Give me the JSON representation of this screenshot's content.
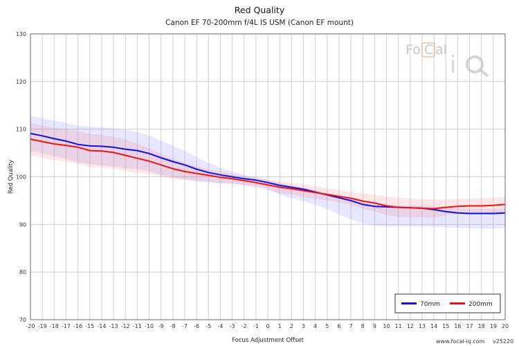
{
  "chart_data": {
    "type": "line",
    "title": "Red Quality",
    "subtitle": "Canon EF 70-200mm f/4L IS USM (Canon EF mount)",
    "xlabel": "Focus Adjustment Offset",
    "ylabel": "Red Quality",
    "xlim": [
      -20,
      20
    ],
    "ylim": [
      70,
      130
    ],
    "yticks": [
      70,
      80,
      90,
      100,
      110,
      120,
      130
    ],
    "x": [
      -20,
      -19,
      -18,
      -17,
      -16,
      -15,
      -14,
      -13,
      -12,
      -11,
      -10,
      -9,
      -8,
      -7,
      -6,
      -5,
      -4,
      -3,
      -2,
      -1,
      0,
      1,
      2,
      3,
      4,
      5,
      6,
      7,
      8,
      9,
      10,
      11,
      12,
      13,
      14,
      15,
      16,
      17,
      18,
      19,
      20
    ],
    "grid": true,
    "legend_position": "bottom-right",
    "series": [
      {
        "name": "70mm",
        "color": "#1010dd",
        "values": [
          109.1,
          108.6,
          108.0,
          107.5,
          106.8,
          106.5,
          106.4,
          106.2,
          105.8,
          105.5,
          104.9,
          104.0,
          103.2,
          102.5,
          101.6,
          100.9,
          100.4,
          100.0,
          99.6,
          99.3,
          98.8,
          98.2,
          97.8,
          97.4,
          96.8,
          96.2,
          95.6,
          95.0,
          94.2,
          93.8,
          93.7,
          93.6,
          93.5,
          93.4,
          93.1,
          92.7,
          92.4,
          92.3,
          92.3,
          92.3,
          92.4
        ],
        "band_upper": [
          112.8,
          112.3,
          111.8,
          111.3,
          110.7,
          110.5,
          110.4,
          110.2,
          109.8,
          109.4,
          108.6,
          107.6,
          106.5,
          105.4,
          104.1,
          102.9,
          101.9,
          101.1,
          100.4,
          99.9,
          99.3,
          98.7,
          98.2,
          97.7,
          97.2,
          96.6,
          96.0,
          95.4,
          94.6,
          94.2,
          94.1,
          94.0,
          94.0,
          94.0,
          93.8,
          93.6,
          93.4,
          93.3,
          93.3,
          93.3,
          93.4
        ],
        "band_lower": [
          105.4,
          104.9,
          104.3,
          103.8,
          103.0,
          102.6,
          102.4,
          102.2,
          101.8,
          101.6,
          101.2,
          100.4,
          99.9,
          99.5,
          99.0,
          98.8,
          98.6,
          98.5,
          98.3,
          98.1,
          97.5,
          96.3,
          95.5,
          94.9,
          94.1,
          93.2,
          92.1,
          91.1,
          90.2,
          89.8,
          89.6,
          89.6,
          89.6,
          89.6,
          89.5,
          89.4,
          89.3,
          89.2,
          89.1,
          89.1,
          89.2
        ]
      },
      {
        "name": "200mm",
        "color": "#ee1111",
        "values": [
          107.9,
          107.4,
          106.9,
          106.6,
          106.2,
          105.5,
          105.4,
          105.1,
          104.5,
          103.9,
          103.3,
          102.5,
          101.7,
          101.1,
          100.7,
          100.3,
          99.9,
          99.6,
          99.2,
          98.8,
          98.3,
          97.8,
          97.5,
          97.1,
          96.7,
          96.3,
          95.9,
          95.5,
          94.9,
          94.5,
          93.9,
          93.6,
          93.5,
          93.4,
          93.3,
          93.6,
          93.8,
          93.9,
          93.9,
          94.0,
          94.2
        ],
        "band_upper": [
          111.3,
          110.8,
          110.3,
          110.0,
          109.6,
          109.0,
          108.8,
          108.4,
          107.8,
          107.0,
          106.0,
          104.9,
          103.8,
          102.9,
          102.2,
          101.6,
          101.1,
          100.6,
          100.2,
          99.8,
          99.4,
          99.1,
          98.7,
          98.4,
          98.0,
          97.6,
          97.2,
          96.9,
          96.5,
          96.2,
          95.9,
          95.6,
          95.5,
          95.3,
          95.2,
          95.3,
          95.4,
          95.5,
          95.5,
          95.6,
          95.8
        ],
        "band_lower": [
          104.5,
          104.0,
          103.5,
          103.2,
          102.8,
          102.0,
          101.9,
          101.8,
          101.2,
          100.8,
          100.6,
          100.1,
          99.6,
          99.3,
          99.2,
          99.0,
          98.7,
          98.6,
          98.2,
          97.8,
          97.2,
          96.5,
          96.3,
          95.8,
          95.4,
          95.0,
          94.6,
          94.1,
          93.3,
          92.8,
          91.9,
          91.6,
          91.5,
          91.5,
          91.4,
          91.9,
          92.2,
          92.3,
          92.3,
          92.4,
          92.6
        ]
      }
    ]
  },
  "watermark": {
    "logo_text": "FoCal iQ"
  },
  "footer": {
    "site": "www.focal-iq.com",
    "version": "v25220"
  }
}
